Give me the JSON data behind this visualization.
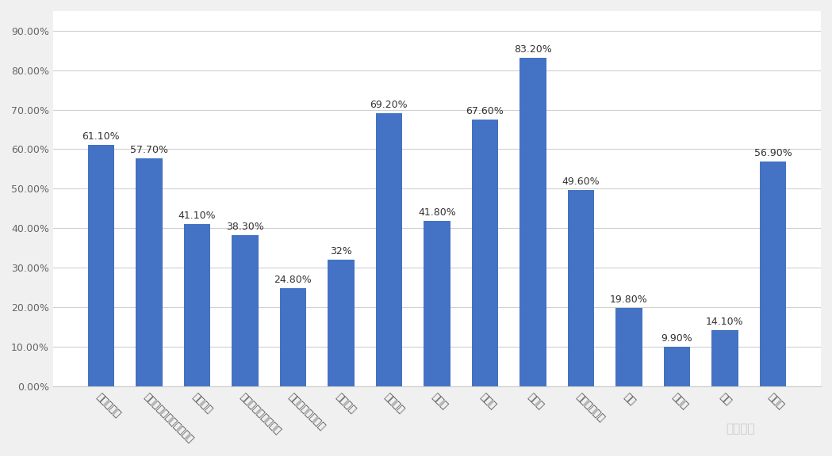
{
  "categories": [
    "儿童淋巴瘤",
    "儿童急性淋巴细胞白血病",
    "儿童脑瘤",
    "成人淋巴细胞白血病",
    "成人髓细胞白血病",
    "成人脑瘤",
    "前列腺癌",
    "卵巢癌",
    "宫颈癌",
    "乳腺癌",
    "皮肤黑色素瘤",
    "肺癌",
    "膀胱癌",
    "肝癌",
    "直肠癌"
  ],
  "values": [
    61.1,
    57.7,
    41.1,
    38.3,
    24.8,
    32.0,
    69.2,
    41.8,
    67.6,
    83.2,
    49.6,
    19.8,
    9.9,
    14.1,
    56.9
  ],
  "bar_labels": [
    "61.10%",
    "57.70%",
    "41.10%",
    "38.30%",
    "24.80%",
    "32%",
    "69.20%",
    "41.80%",
    "67.60%",
    "83.20%",
    "49.60%",
    "19.80%",
    "9.90%",
    "14.10%",
    "56.90%"
  ],
  "bar_color": "#4472C4",
  "background_color": "#f0f0f0",
  "plot_background": "#ffffff",
  "grid_color": "#d0d0d0",
  "yticks": [
    0,
    10,
    20,
    30,
    40,
    50,
    60,
    70,
    80,
    90
  ],
  "ylim": [
    0,
    95
  ],
  "bar_label_fontsize": 9,
  "xlabel_fontsize": 9,
  "xlabel_rotation": -45,
  "watermark": "无癌家园"
}
